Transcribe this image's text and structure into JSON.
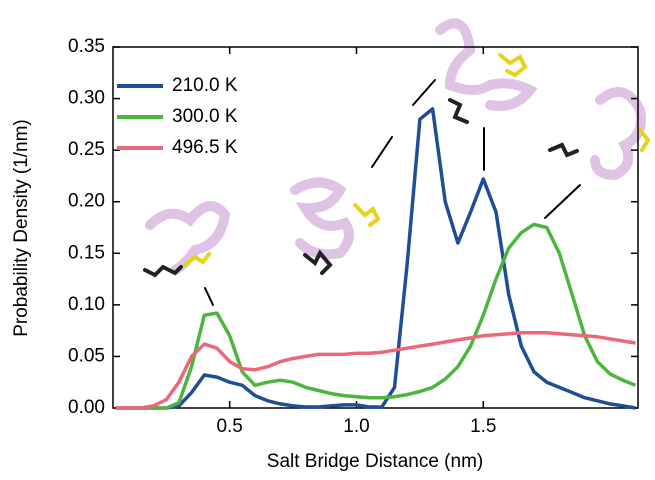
{
  "chart_data": {
    "type": "line",
    "x_label": "Salt Bridge Distance (nm)",
    "y_label": "Probability Density (1/nm)",
    "x": [
      0.05,
      0.1,
      0.15,
      0.2,
      0.25,
      0.3,
      0.35,
      0.4,
      0.45,
      0.5,
      0.55,
      0.6,
      0.65,
      0.7,
      0.75,
      0.8,
      0.85,
      0.9,
      0.95,
      1.0,
      1.05,
      1.1,
      1.15,
      1.2,
      1.25,
      1.3,
      1.35,
      1.4,
      1.45,
      1.5,
      1.55,
      1.6,
      1.65,
      1.7,
      1.75,
      1.8,
      1.85,
      1.9,
      1.95,
      2.0,
      2.05,
      2.1
    ],
    "series": [
      {
        "name": "210.0 K",
        "color": "#1f4e96",
        "values": [
          0,
          0,
          0,
          0,
          0,
          0.002,
          0.015,
          0.032,
          0.03,
          0.025,
          0.022,
          0.012,
          0.007,
          0.004,
          0.002,
          0.001,
          0.001,
          0.002,
          0.003,
          0.003,
          0.001,
          0.001,
          0.02,
          0.14,
          0.28,
          0.29,
          0.2,
          0.16,
          0.19,
          0.222,
          0.19,
          0.11,
          0.06,
          0.035,
          0.025,
          0.02,
          0.015,
          0.01,
          0.007,
          0.004,
          0.002,
          0
        ]
      },
      {
        "name": "300.0 K",
        "color": "#4cb53f",
        "values": [
          0,
          0,
          0,
          0,
          0,
          0.005,
          0.04,
          0.09,
          0.092,
          0.07,
          0.035,
          0.022,
          0.025,
          0.027,
          0.025,
          0.02,
          0.017,
          0.014,
          0.012,
          0.011,
          0.01,
          0.01,
          0.011,
          0.013,
          0.016,
          0.02,
          0.028,
          0.04,
          0.06,
          0.09,
          0.125,
          0.155,
          0.17,
          0.178,
          0.175,
          0.15,
          0.11,
          0.07,
          0.045,
          0.033,
          0.027,
          0.022
        ]
      },
      {
        "name": "496.5 K",
        "color": "#e8697a",
        "values": [
          0,
          0,
          0,
          0.002,
          0.008,
          0.025,
          0.05,
          0.062,
          0.058,
          0.045,
          0.038,
          0.037,
          0.04,
          0.045,
          0.048,
          0.05,
          0.052,
          0.052,
          0.052,
          0.053,
          0.053,
          0.054,
          0.056,
          0.058,
          0.06,
          0.062,
          0.064,
          0.066,
          0.068,
          0.07,
          0.071,
          0.072,
          0.073,
          0.073,
          0.073,
          0.072,
          0.071,
          0.07,
          0.069,
          0.067,
          0.065,
          0.063
        ]
      }
    ],
    "xlim": [
      0.04,
      2.11
    ],
    "ylim": [
      0,
      0.35
    ],
    "xticks": [
      {
        "value": 0.5,
        "label": "0.5"
      },
      {
        "value": 1.0,
        "label": "1.0"
      },
      {
        "value": 1.5,
        "label": "1.5"
      }
    ],
    "yticks": [
      {
        "value": 0,
        "label": "0.00"
      },
      {
        "value": 0.05,
        "label": "0.05"
      },
      {
        "value": 0.1,
        "label": "0.10"
      },
      {
        "value": 0.15,
        "label": "0.15"
      },
      {
        "value": 0.2,
        "label": "0.20"
      },
      {
        "value": 0.25,
        "label": "0.25"
      },
      {
        "value": 0.3,
        "label": "0.30"
      },
      {
        "value": 0.35,
        "label": "0.35"
      }
    ],
    "legend": "upper left"
  }
}
